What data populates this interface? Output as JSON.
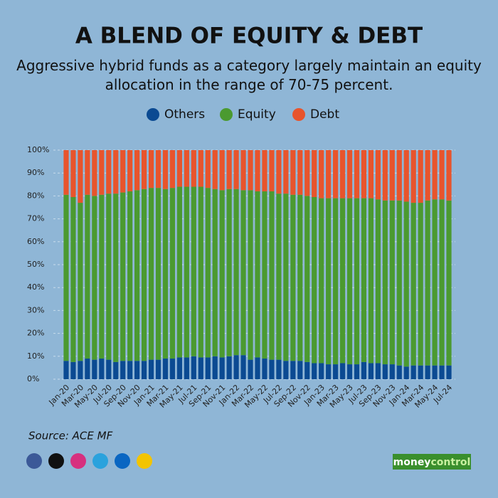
{
  "chart_data": {
    "type": "stacked_bar",
    "title": "A BLEND OF EQUITY & DEBT",
    "subtitle": "Aggressive hybrid funds as a category largely maintain an equity allocation in the range of 70-75 percent.",
    "categories": [
      "Jan-20",
      null,
      "Mar-20",
      null,
      "May-20",
      null,
      "Jul-20",
      null,
      "Sep-20",
      null,
      "Nov-20",
      null,
      "Jan-21",
      null,
      "Mar-21",
      null,
      "May-21",
      null,
      "Jul-21",
      null,
      "Sep-21",
      null,
      "Nov-21",
      null,
      "Jan-22",
      null,
      "Mar-22",
      null,
      "May-22",
      null,
      "Jul-22",
      null,
      "Sep-22",
      null,
      "Nov-22",
      null,
      "Jan-23",
      null,
      "Mar-23",
      null,
      "May-23",
      null,
      "Jul-23",
      null,
      "Sep-23",
      null,
      "Nov-23",
      null,
      "Jan-24",
      null,
      "Mar-24",
      null,
      "May-24",
      null,
      "Jul-24"
    ],
    "series": [
      {
        "name": "Others",
        "color": "#0b4a92",
        "values": [
          8,
          7.5,
          8,
          9,
          8.5,
          9,
          8.5,
          7.5,
          8,
          8,
          8,
          8,
          8.5,
          8.5,
          9,
          9,
          9.5,
          9.5,
          10,
          9.5,
          9.5,
          10,
          9.5,
          10,
          10.5,
          10.5,
          8.5,
          9.5,
          9,
          8.5,
          8.5,
          8,
          8,
          8,
          7.5,
          7,
          7,
          6.5,
          6.5,
          7,
          6.5,
          6.5,
          7.5,
          7,
          7,
          6.5,
          6.5,
          6,
          5.5,
          6,
          6,
          6,
          6,
          6,
          6
        ]
      },
      {
        "name": "Equity",
        "color": "#4b9a30",
        "values": [
          72.5,
          72,
          69,
          71.5,
          71.5,
          71.5,
          72.5,
          73.5,
          73.5,
          74,
          74.5,
          75,
          75,
          75,
          74,
          74.5,
          74.5,
          74.5,
          74,
          74.5,
          74,
          73,
          73,
          73,
          72.5,
          72,
          74,
          72.5,
          73,
          73.5,
          72.5,
          73,
          72.5,
          72.5,
          72.5,
          72.5,
          72,
          72.5,
          72.5,
          72,
          72.5,
          72.5,
          71.5,
          72,
          71.5,
          71.5,
          71.5,
          72,
          72,
          71,
          71,
          72,
          72.5,
          72.5,
          72
        ]
      },
      {
        "name": "Debt",
        "color": "#e8542c",
        "values": [
          19.5,
          20.5,
          23,
          19.5,
          20,
          19.5,
          19,
          19,
          18.5,
          18,
          17.5,
          17,
          16.5,
          16.5,
          17,
          16.5,
          16,
          16,
          16,
          16,
          16.5,
          17,
          17.5,
          17,
          17,
          17.5,
          17.5,
          18,
          18,
          18,
          19,
          19,
          19.5,
          19.5,
          20,
          20.5,
          21,
          21,
          21,
          21,
          21,
          21,
          21,
          21,
          21.5,
          22,
          22,
          22,
          22.5,
          23,
          23,
          22,
          21.5,
          21.5,
          22
        ]
      }
    ],
    "ylim": [
      0,
      100
    ],
    "yticks": [
      {
        "value": 0,
        "label": "0%"
      },
      {
        "value": 10,
        "label": "10%"
      },
      {
        "value": 20,
        "label": "20%"
      },
      {
        "value": 30,
        "label": "30%"
      },
      {
        "value": 40,
        "label": "40%"
      },
      {
        "value": 50,
        "label": "50%"
      },
      {
        "value": 60,
        "label": "60%"
      },
      {
        "value": 70,
        "label": "70%"
      },
      {
        "value": 80,
        "label": "80%"
      },
      {
        "value": 90,
        "label": "90%"
      },
      {
        "value": 100,
        "label": "100%"
      }
    ],
    "grid": true,
    "source": "Source: ACE MF"
  },
  "footer": {
    "brand_left": "money",
    "brand_right": "control"
  }
}
